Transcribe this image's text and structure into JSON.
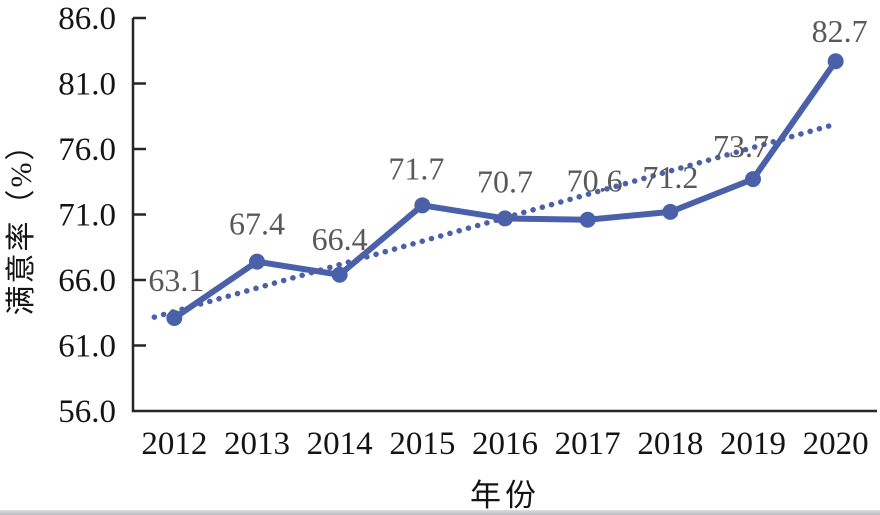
{
  "chart_data": {
    "type": "line",
    "title": "",
    "categories": [
      "2012",
      "2013",
      "2014",
      "2015",
      "2016",
      "2017",
      "2018",
      "2019",
      "2020"
    ],
    "series": [
      {
        "name": "满意率",
        "values": [
          63.1,
          67.4,
          66.4,
          71.7,
          70.7,
          70.6,
          71.2,
          73.7,
          82.7
        ]
      }
    ],
    "data_labels": [
      "63.1",
      "67.4",
      "66.4",
      "71.7",
      "70.7",
      "70.6",
      "71.2",
      "73.7",
      "82.7"
    ],
    "xlabel": "年份",
    "ylabel": "满意率（%）",
    "ylim": [
      56,
      86
    ],
    "ytick_step": 5,
    "yticks": [
      "56.0",
      "61.0",
      "66.0",
      "71.0",
      "76.0",
      "81.0",
      "86.0"
    ],
    "grid": false,
    "legend": "none",
    "trendline": {
      "type": "linear",
      "style": "dotted",
      "start_value": 63.6,
      "end_value": 77.9
    },
    "colors": {
      "line": "#4a60a8",
      "trend": "#4a60a8",
      "data_label": "#595959",
      "axis": "#262626",
      "tick_text": "#141414"
    }
  }
}
